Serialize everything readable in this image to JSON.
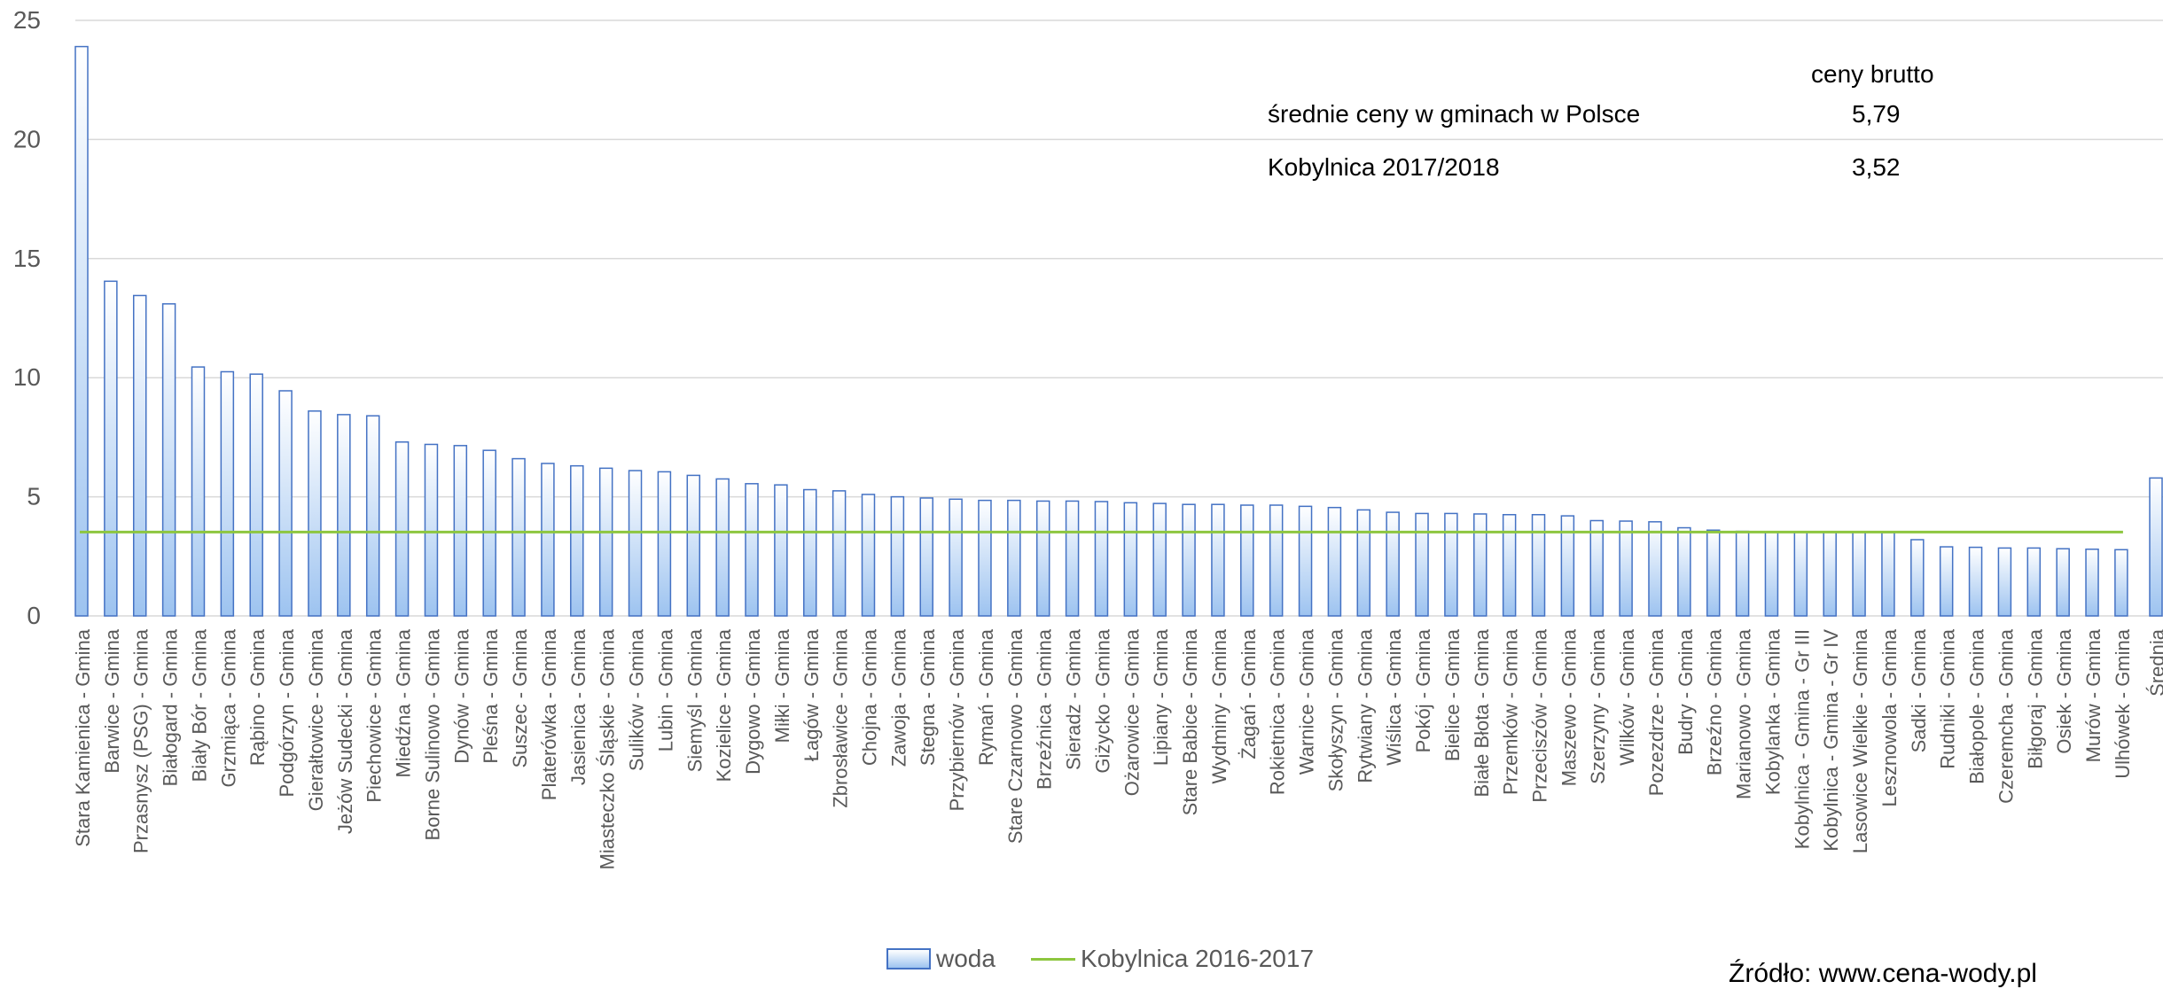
{
  "chart_data": {
    "type": "bar",
    "ylim": [
      0,
      25
    ],
    "yticks": [
      0,
      5,
      10,
      15,
      20,
      25
    ],
    "grid": true,
    "legend_position": "bottom",
    "colors": {
      "bar_fill_top": "#ffffff",
      "bar_fill_bottom": "#9dc3f0",
      "bar_stroke": "#4472c4",
      "line": "#8dc63f",
      "grid": "#d9d9d9",
      "axis_text": "#595959"
    },
    "categories": [
      "Stara Kamienica - Gmina",
      "Barwice - Gmina",
      "Przasnysz (PSG) - Gmina",
      "Białogard - Gmina",
      "Biały Bór - Gmina",
      "Grzmiąca - Gmina",
      "Rąbino - Gmina",
      "Podgórzyn - Gmina",
      "Gierałtowice - Gmina",
      "Jeżów Sudecki - Gmina",
      "Piechowice - Gmina",
      "Miedźna - Gmina",
      "Borne Sulinowo - Gmina",
      "Dynów - Gmina",
      "Pleśna - Gmina",
      "Suszec - Gmina",
      "Platerówka - Gmina",
      "Jasienica - Gmina",
      "Miasteczko Śląskie - Gmina",
      "Sulików - Gmina",
      "Lubin - Gmina",
      "Siemyśl - Gmina",
      "Kozielice - Gmina",
      "Dygowo - Gmina",
      "Miłki - Gmina",
      "Łagów - Gmina",
      "Zbrosławice - Gmina",
      "Chojna - Gmina",
      "Zawoja - Gmina",
      "Stegna - Gmina",
      "Przybiernów - Gmina",
      "Rymań - Gmina",
      "Stare Czarnowo - Gmina",
      "Brzeźnica - Gmina",
      "Sieradz - Gmina",
      "Giżycko - Gmina",
      "Ożarowice - Gmina",
      "Lipiany - Gmina",
      "Stare Babice - Gmina",
      "Wydminy - Gmina",
      "Żagań - Gmina",
      "Rokietnica - Gmina",
      "Warnice - Gmina",
      "Skołyszyn - Gmina",
      "Rytwiany - Gmina",
      "Wiślica - Gmina",
      "Pokój - Gmina",
      "Bielice - Gmina",
      "Białe Błota - Gmina",
      "Przemków - Gmina",
      "Przeciszów - Gmina",
      "Maszewo - Gmina",
      "Szerzyny - Gmina",
      "Wilków - Gmina",
      "Pozezdrze - Gmina",
      "Budry - Gmina",
      "Brzeźno - Gmina",
      "Marianowo - Gmina",
      "Kobylanka - Gmina",
      "Kobylnica - Gmina - Gr III",
      "Kobylnica - Gmina - Gr IV",
      "Lasowice Wielkie - Gmina",
      "Lesznowola - Gmina",
      "Sadki - Gmina",
      "Rudniki - Gmina",
      "Białopole - Gmina",
      "Czeremcha - Gmina",
      "Biłgoraj - Gmina",
      "Osiek - Gmina",
      "Murów - Gmina",
      "Ulhówek - Gmina",
      "Średnia"
    ],
    "series": [
      {
        "name": "woda",
        "type": "bar",
        "values": [
          23.9,
          14.05,
          13.45,
          13.1,
          10.45,
          10.25,
          10.15,
          9.45,
          8.6,
          8.45,
          8.4,
          7.3,
          7.2,
          7.15,
          6.95,
          6.6,
          6.4,
          6.3,
          6.2,
          6.1,
          6.05,
          5.9,
          5.75,
          5.55,
          5.5,
          5.3,
          5.25,
          5.1,
          5.0,
          4.95,
          4.9,
          4.85,
          4.85,
          4.82,
          4.82,
          4.8,
          4.75,
          4.72,
          4.68,
          4.68,
          4.65,
          4.65,
          4.6,
          4.55,
          4.45,
          4.35,
          4.3,
          4.3,
          4.28,
          4.25,
          4.25,
          4.2,
          4.0,
          3.98,
          3.95,
          3.7,
          3.6,
          3.55,
          3.52,
          3.52,
          3.52,
          3.52,
          3.5,
          3.2,
          2.9,
          2.88,
          2.85,
          2.85,
          2.82,
          2.8,
          2.78,
          5.79
        ]
      },
      {
        "name": "Kobylnica 2016-2017",
        "type": "line",
        "value": 3.52,
        "span_categories": [
          0,
          70
        ]
      }
    ]
  },
  "info_box": {
    "header": "ceny brutto",
    "rows": [
      {
        "label": "średnie ceny w gminach w Polsce",
        "value": "5,79"
      },
      {
        "label": "Kobylnica 2017/2018",
        "value": "3,52"
      }
    ]
  },
  "source": "Źródło: www.cena-wody.pl"
}
